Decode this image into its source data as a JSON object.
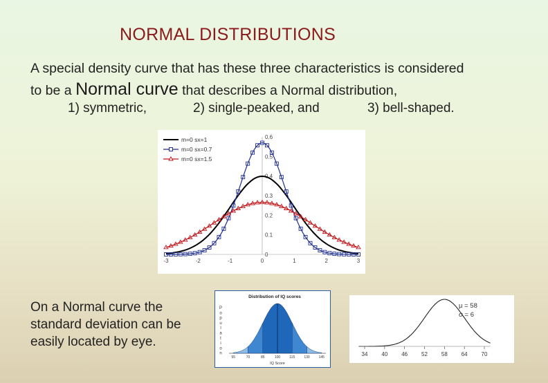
{
  "slide": {
    "title": "NORMAL DISTRIBUTIONS",
    "intro_line1": "A special density curve that has these three characteristics is considered",
    "intro_line2_start": "to be a ",
    "intro_emphasis": "Normal curve",
    "intro_line2_end": " that describes a Normal distribution,",
    "characteristics": [
      "1)  symmetric,",
      "2)  single-peaked, and",
      "3)   bell-shaped."
    ],
    "caption": "On a Normal curve the standard deviation can be easily located by eye."
  },
  "chart_data": [
    {
      "type": "line",
      "title": "",
      "series": [
        {
          "name": "m=0 sx=1",
          "mu": 0,
          "sigma": 1,
          "color": "#000000",
          "marker": "none"
        },
        {
          "name": "m=0 sx=0.7",
          "mu": 0,
          "sigma": 0.7,
          "color": "#1f2f8f",
          "marker": "square"
        },
        {
          "name": "m=0 sx=1.5",
          "mu": 0,
          "sigma": 1.5,
          "color": "#c0181c",
          "marker": "triangle"
        }
      ],
      "xlim": [
        -3,
        3
      ],
      "ylim": [
        0,
        0.6
      ],
      "x_ticks": [
        "-3",
        "-2",
        "-1",
        "0",
        "1",
        "2",
        "3"
      ],
      "y_ticks": [
        "0",
        "0.1",
        "0.2",
        "0.3",
        "0.4",
        "0.5",
        "0.6"
      ],
      "legend_position": "top-left"
    },
    {
      "type": "area",
      "title": "Distribution of IQ scores",
      "xlabel": "IQ Score",
      "ylabel": "Population",
      "mu": 100,
      "sigma": 15,
      "x_ticks": [
        "55",
        "70",
        "85",
        "100",
        "115",
        "130",
        "145"
      ],
      "colors": {
        "inner": "#1e67b9",
        "middle": "#3f87d0",
        "outer": "#8dbde6"
      }
    },
    {
      "type": "line",
      "mu": 58,
      "sigma": 6,
      "legend_mu": "μ = 58",
      "legend_sigma": "σ = 6",
      "x_ticks": [
        "34",
        "40",
        "46",
        "52",
        "58",
        "64",
        "70"
      ]
    }
  ]
}
